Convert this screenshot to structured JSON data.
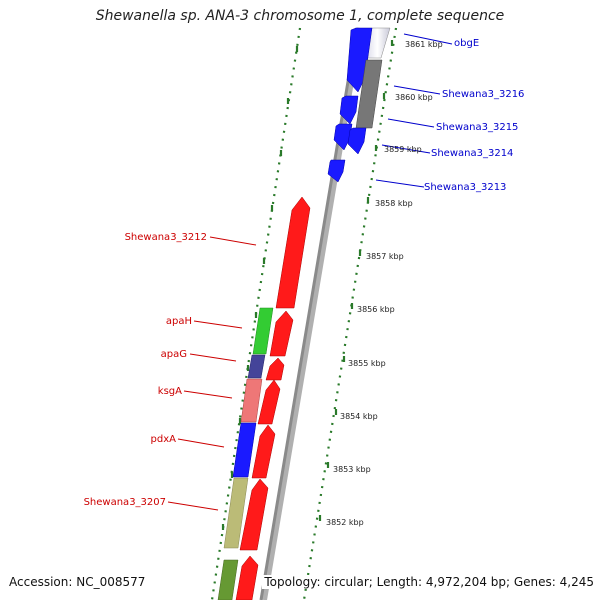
{
  "title": "Shewanella sp. ANA-3 chromosome 1, complete sequence",
  "accession": "Accession: NC_008577",
  "topology": "Topology: circular; Length: 4,972,204 bp; Genes: 4,245",
  "colors": {
    "forward_label": "#0000cc",
    "reverse_label": "#cc0000",
    "tick": "#2a7a2a",
    "backbone": "#909090"
  },
  "kbp_labels": [
    "3861 kbp",
    "3860 kbp",
    "3859 kbp",
    "3858 kbp",
    "3857 kbp",
    "3856 kbp",
    "3855 kbp",
    "3854 kbp",
    "3853 kbp",
    "3852 kbp"
  ],
  "forward_gene_labels": [
    "obgE",
    "Shewana3_3216",
    "Shewana3_3215",
    "Shewana3_3214",
    "Shewana3_3213"
  ],
  "reverse_gene_labels": [
    "Shewana3_3212",
    "apaH",
    "apaG",
    "ksgA",
    "pdxA",
    "Shewana3_3207"
  ]
}
